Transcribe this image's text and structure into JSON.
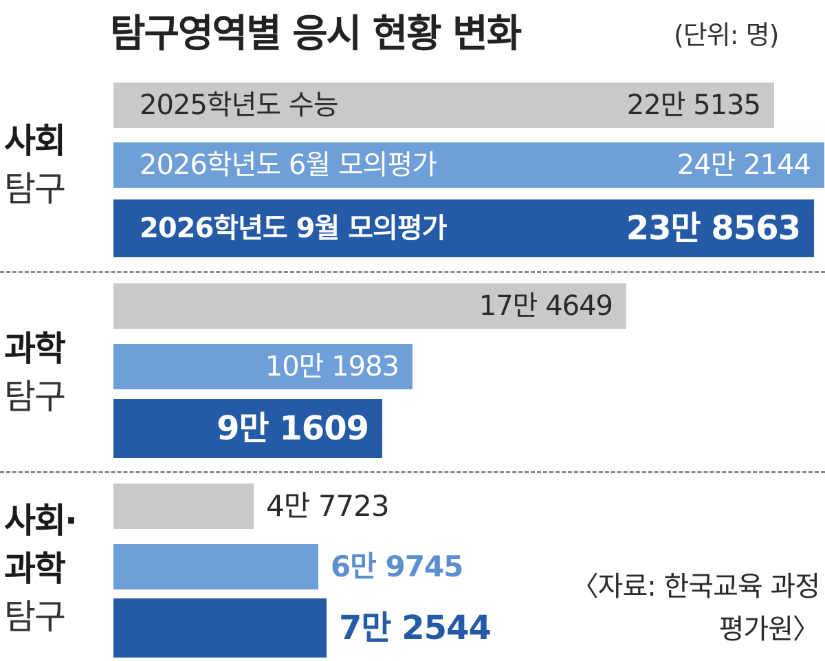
{
  "title": "탐구영역별 응시 현황 변화",
  "unit": "(단위: 명)",
  "source": "〈자료: 한국교육 과정평가원〉",
  "colors": {
    "2025_csat": "#c9c9c9",
    "2026_june": "#6f9fd8",
    "2026_sept": "#245aa6"
  },
  "chart_data": {
    "type": "bar",
    "orientation": "horizontal",
    "title": "탐구영역별 응시 현황 변화",
    "unit": "(단위: 명)",
    "series_labels": [
      "2025학년도 수능",
      "2026학년도 6월 모의평가",
      "2026학년도 9월 모의평가"
    ],
    "groups": [
      {
        "label_line1": "사회",
        "label_line2": "탐구",
        "bars": [
          {
            "series": "2025학년도 수능",
            "value": 225135,
            "label": "22만 5135"
          },
          {
            "series": "2026학년도 6월 모의평가",
            "value": 242144,
            "label": "24만 2144"
          },
          {
            "series": "2026학년도 9월 모의평가",
            "value": 238563,
            "label": "23만 8563"
          }
        ]
      },
      {
        "label_line1": "과학",
        "label_line2": "탐구",
        "bars": [
          {
            "series": "2025학년도 수능",
            "value": 174649,
            "label": "17만 4649"
          },
          {
            "series": "2026학년도 6월 모의평가",
            "value": 101983,
            "label": "10만 1983"
          },
          {
            "series": "2026학년도 9월 모의평가",
            "value": 91609,
            "label": "9만 1609"
          }
        ]
      },
      {
        "label_line1": "사회·",
        "label_line2": "과학",
        "label_line3": "탐구",
        "bars": [
          {
            "series": "2025학년도 수능",
            "value": 47723,
            "label": "4만 7723"
          },
          {
            "series": "2026학년도 6월 모의평가",
            "value": 69745,
            "label": "6만 9745"
          },
          {
            "series": "2026학년도 9월 모의평가",
            "value": 72544,
            "label": "7만 2544"
          }
        ]
      }
    ]
  }
}
